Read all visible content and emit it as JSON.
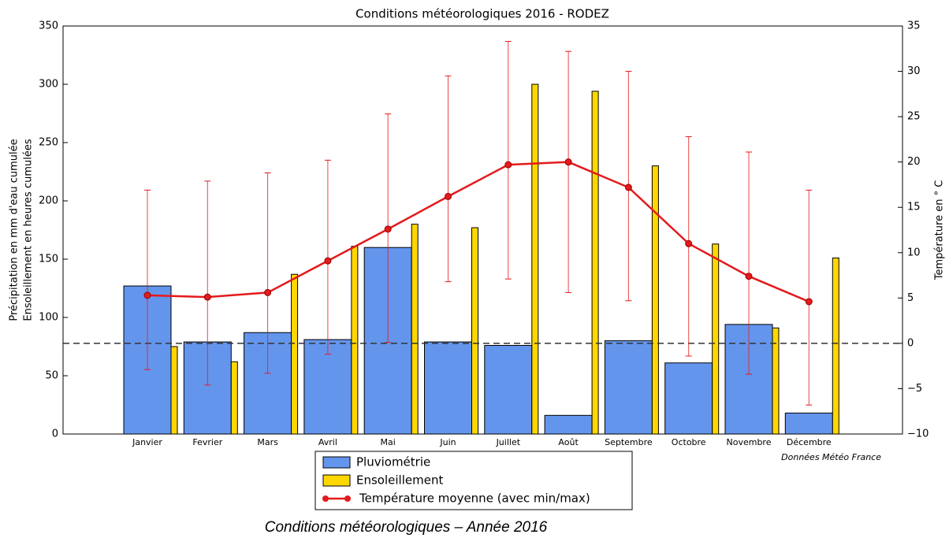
{
  "chart_data": {
    "type": "bar_line_dual",
    "title": "Conditions météorologiques 2016 - RODEZ",
    "ylabel": [
      "Précipitation en mm d'eau cumulée",
      "Ensoleillement en heures cumulées"
    ],
    "y2label": "Température en ° C",
    "annotation": "Données Météo France",
    "caption": "Conditions météorologiques – Année 2016",
    "categories": [
      "Janvier",
      "Fevrier",
      "Mars",
      "Avril",
      "Mai",
      "Juin",
      "Juillet",
      "Août",
      "Septembre",
      "Octobre",
      "Novembre",
      "Décembre"
    ],
    "series": [
      {
        "name": "Pluviométrie",
        "type": "bar",
        "color": "#6495ed",
        "values": [
          127,
          79,
          87,
          81,
          160,
          79,
          76,
          16,
          80,
          61,
          94,
          18
        ]
      },
      {
        "name": "Ensoleillement",
        "type": "bar",
        "color": "#ffd700",
        "values": [
          75,
          62,
          137,
          161,
          180,
          177,
          300,
          294,
          230,
          163,
          91,
          151
        ]
      },
      {
        "name": "Température moyenne (avec min/max)",
        "type": "line",
        "axis": "y2",
        "color": "#e41a1c",
        "values": [
          5.3,
          5.1,
          5.6,
          9.1,
          12.6,
          16.2,
          19.7,
          20.0,
          17.2,
          11.0,
          7.4,
          4.6
        ],
        "min": [
          -2.9,
          -4.6,
          -3.3,
          -1.2,
          0.1,
          6.8,
          7.1,
          5.6,
          4.7,
          -1.4,
          -3.4,
          -6.8
        ],
        "max": [
          16.9,
          17.9,
          18.8,
          20.2,
          25.3,
          29.5,
          33.3,
          32.2,
          30.0,
          22.8,
          21.1,
          16.9
        ]
      }
    ],
    "ylim": [
      0,
      350
    ],
    "yticks": [
      0,
      50,
      100,
      150,
      200,
      250,
      300,
      350
    ],
    "y2lim": [
      -10,
      35
    ],
    "y2ticks": [
      {
        "value": -10,
        "label": "−10"
      },
      {
        "value": -5,
        "label": "−5"
      },
      0,
      5,
      10,
      15,
      20,
      25,
      30,
      35
    ],
    "reference_line": {
      "value": 0,
      "axis": "y2",
      "style": "dashed"
    },
    "legend": "bottom"
  }
}
